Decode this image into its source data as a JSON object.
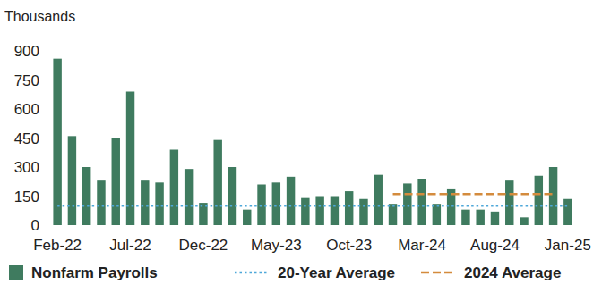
{
  "chart_data": {
    "type": "bar",
    "y_label": "Thousands",
    "categories": [
      "Feb-22",
      null,
      null,
      null,
      null,
      "Jul-22",
      null,
      null,
      null,
      null,
      "Dec-22",
      null,
      null,
      null,
      null,
      "May-23",
      null,
      null,
      null,
      null,
      "Oct-23",
      null,
      null,
      null,
      null,
      "Mar-24",
      null,
      null,
      null,
      null,
      "Aug-24",
      null,
      null,
      null,
      null,
      "Jan-25"
    ],
    "series": [
      {
        "name": "Nonfarm Payrolls",
        "type": "bar",
        "color": "#3f7b5f",
        "values": [
          860,
          460,
          300,
          230,
          450,
          690,
          230,
          220,
          390,
          290,
          115,
          440,
          300,
          80,
          210,
          220,
          250,
          140,
          150,
          150,
          175,
          135,
          260,
          110,
          215,
          240,
          110,
          185,
          80,
          80,
          70,
          230,
          40,
          255,
          300,
          135
        ]
      },
      {
        "name": "20-Year Average",
        "type": "line",
        "line_style": "dotted",
        "color": "#4ea8d9",
        "values": [
          100,
          100,
          100,
          100,
          100,
          100,
          100,
          100,
          100,
          100,
          100,
          100,
          100,
          100,
          100,
          100,
          100,
          100,
          100,
          100,
          100,
          100,
          100,
          100,
          100,
          100,
          100,
          100,
          100,
          100,
          100,
          100,
          100,
          100,
          100,
          100
        ]
      },
      {
        "name": "2024 Average",
        "type": "line",
        "line_style": "dashed",
        "color": "#d48b3d",
        "values": [
          null,
          null,
          null,
          null,
          null,
          null,
          null,
          null,
          null,
          null,
          null,
          null,
          null,
          null,
          null,
          null,
          null,
          null,
          null,
          null,
          null,
          null,
          null,
          160,
          160,
          160,
          160,
          160,
          160,
          160,
          160,
          160,
          160,
          160,
          160,
          null
        ]
      }
    ],
    "ylim": [
      0,
      900
    ],
    "yticks": [
      0,
      150,
      300,
      450,
      600,
      750,
      900
    ],
    "grid": false,
    "legend": "bottom"
  }
}
